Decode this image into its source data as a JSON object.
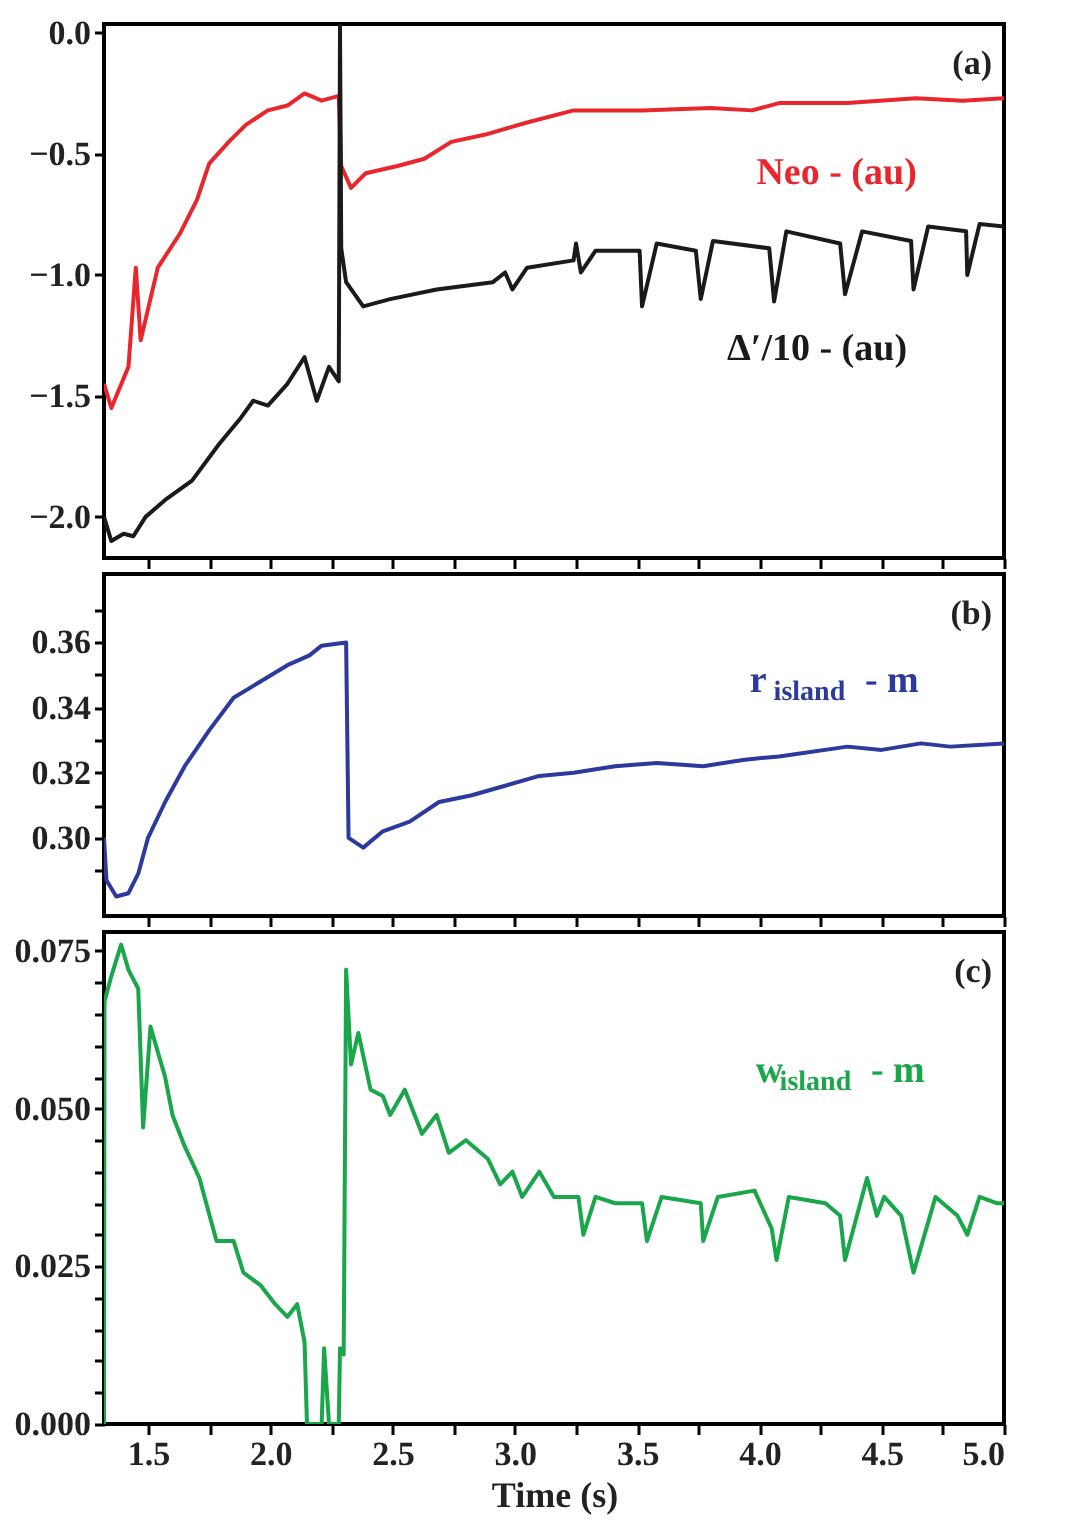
{
  "chart_data": [
    {
      "type": "line",
      "annotations": [
        "(a)"
      ],
      "tick_labels": "y",
      "xlim": [
        1.32,
        5.0
      ],
      "ylim": [
        -2.17,
        0.037
      ],
      "xticks": [
        {
          "value": 1.5,
          "label": null
        },
        {
          "value": 1.75,
          "label": null
        },
        {
          "value": 2.0,
          "label": null
        },
        {
          "value": 2.25,
          "label": null
        },
        {
          "value": 2.5,
          "label": null
        },
        {
          "value": 2.75,
          "label": null
        },
        {
          "value": 3.0,
          "label": null
        },
        {
          "value": 3.25,
          "label": null
        },
        {
          "value": 3.5,
          "label": null
        },
        {
          "value": 3.75,
          "label": null
        },
        {
          "value": 4.0,
          "label": null
        },
        {
          "value": 4.25,
          "label": null
        },
        {
          "value": 4.5,
          "label": null
        },
        {
          "value": 4.75,
          "label": null
        },
        {
          "value": 5.0,
          "label": null
        }
      ],
      "yticks": [
        {
          "value": 0,
          "label": "0.0"
        },
        {
          "value": -0.5,
          "label": "−0.5"
        },
        {
          "value": -1.0,
          "label": "−1.0"
        },
        {
          "value": -1.5,
          "label": "−1.5"
        },
        {
          "value": -2.0,
          "label": "−2.0"
        }
      ],
      "series": [
        {
          "name": "Neo - (au)",
          "color": "#e8262c",
          "x": [
            1.32,
            1.35,
            1.42,
            1.45,
            1.47,
            1.54,
            1.63,
            1.7,
            1.75,
            1.83,
            1.9,
            1.99,
            2.07,
            2.14,
            2.21,
            2.28,
            2.29,
            2.33,
            2.39,
            2.52,
            2.63,
            2.74,
            2.88,
            3.05,
            3.24,
            3.52,
            3.8,
            3.97,
            4.08,
            4.36,
            4.64,
            4.83,
            5.0
          ],
          "values": [
            -1.45,
            -1.55,
            -1.38,
            -0.97,
            -1.27,
            -0.97,
            -0.83,
            -0.69,
            -0.54,
            -0.45,
            -0.38,
            -0.32,
            -0.3,
            -0.25,
            -0.28,
            -0.26,
            -0.55,
            -0.64,
            -0.58,
            -0.55,
            -0.52,
            -0.45,
            -0.42,
            -0.37,
            -0.32,
            -0.32,
            -0.31,
            -0.32,
            -0.29,
            -0.29,
            -0.27,
            -0.28,
            -0.27
          ]
        },
        {
          "name": "Δ′/10 - (au)",
          "color": "#1a1a1a",
          "x": [
            1.32,
            1.35,
            1.4,
            1.44,
            1.49,
            1.57,
            1.68,
            1.79,
            1.88,
            1.93,
            1.99,
            2.07,
            2.14,
            2.19,
            2.24,
            2.28,
            2.285,
            2.29,
            2.31,
            2.38,
            2.49,
            2.68,
            2.91,
            2.96,
            2.99,
            3.05,
            3.24,
            3.25,
            3.27,
            3.33,
            3.51,
            3.52,
            3.58,
            3.74,
            3.76,
            3.81,
            4.04,
            4.06,
            4.11,
            4.33,
            4.35,
            4.42,
            4.62,
            4.63,
            4.69,
            4.845,
            4.85,
            4.9,
            5.0
          ],
          "values": [
            -2.0,
            -2.1,
            -2.07,
            -2.08,
            -2.0,
            -1.93,
            -1.85,
            -1.7,
            -1.59,
            -1.52,
            -1.54,
            -1.45,
            -1.34,
            -1.52,
            -1.38,
            -1.44,
            0.03,
            -0.89,
            -1.03,
            -1.13,
            -1.1,
            -1.06,
            -1.03,
            -0.99,
            -1.06,
            -0.97,
            -0.94,
            -0.87,
            -0.99,
            -0.9,
            -0.9,
            -1.13,
            -0.87,
            -0.9,
            -1.1,
            -0.86,
            -0.89,
            -1.11,
            -0.82,
            -0.87,
            -1.08,
            -0.82,
            -0.86,
            -1.06,
            -0.8,
            -0.82,
            -1.0,
            -0.79,
            -0.8
          ]
        }
      ]
    },
    {
      "type": "line",
      "annotations": [
        "(b)"
      ],
      "tick_labels": "y",
      "xlim": [
        1.32,
        5.0
      ],
      "ylim": [
        0.276,
        0.381
      ],
      "xticks": [
        {
          "value": 1.5,
          "label": null
        },
        {
          "value": 1.75,
          "label": null
        },
        {
          "value": 2.0,
          "label": null
        },
        {
          "value": 2.25,
          "label": null
        },
        {
          "value": 2.5,
          "label": null
        },
        {
          "value": 2.75,
          "label": null
        },
        {
          "value": 3.0,
          "label": null
        },
        {
          "value": 3.25,
          "label": null
        },
        {
          "value": 3.5,
          "label": null
        },
        {
          "value": 3.75,
          "label": null
        },
        {
          "value": 4.0,
          "label": null
        },
        {
          "value": 4.25,
          "label": null
        },
        {
          "value": 4.5,
          "label": null
        },
        {
          "value": 4.75,
          "label": null
        },
        {
          "value": 5.0,
          "label": null
        }
      ],
      "yticks": [
        {
          "value": 0.29,
          "label": null
        },
        {
          "value": 0.3,
          "label": "0.30"
        },
        {
          "value": 0.31,
          "label": null
        },
        {
          "value": 0.32,
          "label": "0.32"
        },
        {
          "value": 0.33,
          "label": null
        },
        {
          "value": 0.34,
          "label": "0.34"
        },
        {
          "value": 0.35,
          "label": null
        },
        {
          "value": 0.36,
          "label": "0.36"
        },
        {
          "value": 0.37,
          "label": null
        }
      ],
      "series": [
        {
          "name": "r$_{island}$ - m",
          "color": "#2b3a9c",
          "x": [
            1.32,
            1.33,
            1.37,
            1.42,
            1.46,
            1.5,
            1.57,
            1.65,
            1.75,
            1.85,
            1.96,
            2.07,
            2.16,
            2.21,
            2.31,
            2.32,
            2.38,
            2.46,
            2.57,
            2.69,
            2.82,
            2.96,
            3.1,
            3.24,
            3.41,
            3.58,
            3.77,
            3.94,
            4.08,
            4.36,
            4.5,
            4.66,
            4.78,
            5.0
          ],
          "values": [
            0.3,
            0.287,
            0.282,
            0.283,
            0.289,
            0.3,
            0.311,
            0.322,
            0.333,
            0.343,
            0.348,
            0.353,
            0.356,
            0.359,
            0.36,
            0.3,
            0.297,
            0.302,
            0.305,
            0.311,
            0.313,
            0.316,
            0.319,
            0.32,
            0.322,
            0.323,
            0.322,
            0.324,
            0.325,
            0.328,
            0.327,
            0.329,
            0.328,
            0.329
          ]
        }
      ]
    },
    {
      "type": "line",
      "annotations": [
        "(c)"
      ],
      "xlabel": "Time (s)",
      "xlim": [
        1.32,
        5.0
      ],
      "ylim": [
        0,
        0.078
      ],
      "xticks": [
        {
          "value": 1.5,
          "label": "1.5"
        },
        {
          "value": 1.75,
          "label": null
        },
        {
          "value": 2.0,
          "label": "2.0"
        },
        {
          "value": 2.25,
          "label": null
        },
        {
          "value": 2.5,
          "label": "2.5"
        },
        {
          "value": 2.75,
          "label": null
        },
        {
          "value": 3.0,
          "label": "3.0"
        },
        {
          "value": 3.25,
          "label": null
        },
        {
          "value": 3.5,
          "label": "3.5"
        },
        {
          "value": 3.75,
          "label": null
        },
        {
          "value": 4.0,
          "label": "4.0"
        },
        {
          "value": 4.25,
          "label": null
        },
        {
          "value": 4.5,
          "label": "4.5"
        },
        {
          "value": 4.75,
          "label": null
        },
        {
          "value": 5.0,
          "label": "5.0"
        }
      ],
      "yticks": [
        {
          "value": 0,
          "label": "0.000"
        },
        {
          "value": 0.005,
          "label": null
        },
        {
          "value": 0.01,
          "label": null
        },
        {
          "value": 0.015,
          "label": null
        },
        {
          "value": 0.02,
          "label": null
        },
        {
          "value": 0.025,
          "label": "0.025"
        },
        {
          "value": 0.03,
          "label": null
        },
        {
          "value": 0.035,
          "label": null
        },
        {
          "value": 0.04,
          "label": null
        },
        {
          "value": 0.045,
          "label": null
        },
        {
          "value": 0.05,
          "label": "0.050"
        },
        {
          "value": 0.055,
          "label": null
        },
        {
          "value": 0.06,
          "label": null
        },
        {
          "value": 0.065,
          "label": null
        },
        {
          "value": 0.07,
          "label": null
        },
        {
          "value": 0.075,
          "label": "0.075"
        }
      ],
      "series": [
        {
          "name": "w$_{island}$ - m",
          "color": "#1aa64a",
          "x": [
            1.32,
            1.322,
            1.35,
            1.39,
            1.42,
            1.46,
            1.48,
            1.51,
            1.57,
            1.6,
            1.65,
            1.71,
            1.78,
            1.85,
            1.89,
            1.96,
            2.02,
            2.07,
            2.11,
            2.14,
            2.15,
            2.21,
            2.22,
            2.24,
            2.28,
            2.285,
            2.3,
            2.31,
            2.33,
            2.36,
            2.41,
            2.46,
            2.49,
            2.55,
            2.62,
            2.68,
            2.73,
            2.8,
            2.89,
            2.94,
            2.99,
            3.03,
            3.1,
            3.16,
            3.26,
            3.28,
            3.33,
            3.41,
            3.52,
            3.54,
            3.6,
            3.76,
            3.77,
            3.83,
            3.98,
            4.05,
            4.07,
            4.12,
            4.27,
            4.33,
            4.35,
            4.44,
            4.48,
            4.51,
            4.58,
            4.63,
            4.72,
            4.81,
            4.85,
            4.9,
            4.97,
            5.0
          ],
          "values": [
            0,
            0.067,
            0.071,
            0.076,
            0.072,
            0.069,
            0.047,
            0.063,
            0.055,
            0.049,
            0.044,
            0.039,
            0.029,
            0.029,
            0.024,
            0.022,
            0.019,
            0.017,
            0.019,
            0.013,
            0,
            0,
            0.012,
            0,
            0,
            0.012,
            0.011,
            0.072,
            0.057,
            0.062,
            0.053,
            0.052,
            0.049,
            0.053,
            0.046,
            0.049,
            0.043,
            0.045,
            0.042,
            0.038,
            0.04,
            0.036,
            0.04,
            0.036,
            0.036,
            0.03,
            0.036,
            0.035,
            0.035,
            0.029,
            0.036,
            0.035,
            0.029,
            0.036,
            0.037,
            0.031,
            0.026,
            0.036,
            0.035,
            0.033,
            0.026,
            0.039,
            0.033,
            0.036,
            0.033,
            0.024,
            0.036,
            0.033,
            0.03,
            0.036,
            0.035,
            0.035
          ]
        }
      ]
    }
  ]
}
